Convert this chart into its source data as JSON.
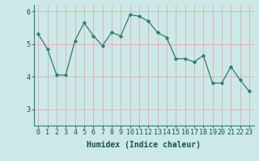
{
  "xlabel": "Humidex (Indice chaleur)",
  "x": [
    0,
    1,
    2,
    3,
    4,
    5,
    6,
    7,
    8,
    9,
    10,
    11,
    12,
    13,
    14,
    15,
    16,
    17,
    18,
    19,
    20,
    21,
    22,
    23
  ],
  "y": [
    5.3,
    4.85,
    4.05,
    4.05,
    5.1,
    5.65,
    5.25,
    4.95,
    5.35,
    5.25,
    5.9,
    5.85,
    5.7,
    5.35,
    5.2,
    4.55,
    4.55,
    4.45,
    4.65,
    3.8,
    3.8,
    4.3,
    3.9,
    3.55
  ],
  "ylim": [
    2.5,
    6.2
  ],
  "xlim": [
    -0.5,
    23.5
  ],
  "yticks": [
    3,
    4,
    5,
    6
  ],
  "xticks": [
    0,
    1,
    2,
    3,
    4,
    5,
    6,
    7,
    8,
    9,
    10,
    11,
    12,
    13,
    14,
    15,
    16,
    17,
    18,
    19,
    20,
    21,
    22,
    23
  ],
  "line_color": "#2e7d6e",
  "bg_color": "#cce8e8",
  "grid_color": "#e8a0a0",
  "label_fontsize": 7,
  "tick_fontsize": 6
}
